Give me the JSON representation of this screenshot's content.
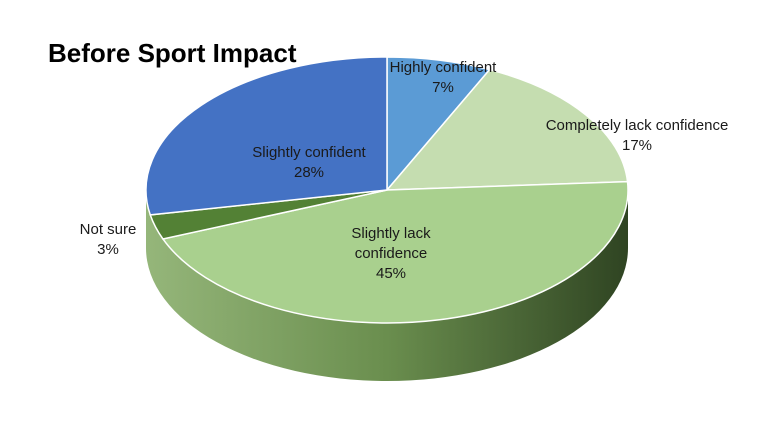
{
  "chart_data": {
    "type": "pie",
    "title": "Before Sport Impact",
    "style": "3d",
    "slices": [
      {
        "label": "Highly confident",
        "value": 7,
        "value_label": "7%",
        "color": "#5B9BD5"
      },
      {
        "label": "Completely lack confidence",
        "value": 17,
        "value_label": "17%",
        "color": "#C5DDB0"
      },
      {
        "label": "Slightly lack confidence",
        "label_lines": [
          "Slightly lack",
          "confidence"
        ],
        "value": 45,
        "value_label": "45%",
        "color": "#A9D08E"
      },
      {
        "label": "Not sure",
        "value": 3,
        "value_label": "3%",
        "color": "#538135"
      },
      {
        "label": "Slightly confident",
        "value": 28,
        "value_label": "28%",
        "color": "#4472C4"
      }
    ]
  }
}
